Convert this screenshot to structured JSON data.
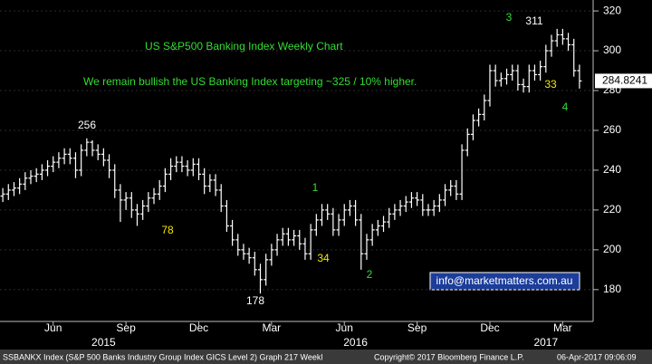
{
  "chart_data": {
    "type": "ohlc",
    "title": "US S&P500 Banking Index Weekly Chart",
    "subtitle": "We remain bullish the US Banking Index targeting ~325 / 10% higher.",
    "categories": [
      null,
      null,
      null,
      null,
      null,
      null,
      null,
      null,
      null,
      "Jun",
      null,
      null,
      null,
      null,
      null,
      null,
      null,
      null,
      null,
      null,
      null,
      null,
      "Sep",
      null,
      null,
      null,
      null,
      null,
      null,
      null,
      null,
      null,
      null,
      null,
      null,
      "Dec",
      null,
      null,
      null,
      null,
      null,
      null,
      null,
      null,
      null,
      null,
      null,
      null,
      "Mar",
      null,
      null,
      null,
      null,
      null,
      null,
      null,
      null,
      null,
      null,
      null,
      null,
      "Jun",
      null,
      null,
      null,
      null,
      null,
      null,
      null,
      null,
      null,
      null,
      null,
      null,
      "Sep",
      null,
      null,
      null,
      null,
      null,
      null,
      null,
      null,
      null,
      null,
      null,
      null,
      "Dec",
      null,
      null,
      null,
      null,
      null,
      null,
      null,
      null,
      null,
      null,
      null,
      null,
      "Mar",
      null,
      null,
      null
    ],
    "year_categories": [
      null,
      null,
      null,
      null,
      null,
      null,
      null,
      null,
      null,
      null,
      null,
      null,
      null,
      null,
      null,
      null,
      null,
      null,
      "2015",
      null,
      null,
      null,
      null,
      null,
      null,
      null,
      null,
      null,
      null,
      null,
      null,
      null,
      null,
      null,
      null,
      null,
      null,
      null,
      null,
      null,
      null,
      null,
      null,
      null,
      null,
      null,
      null,
      null,
      null,
      null,
      null,
      null,
      null,
      null,
      null,
      null,
      null,
      null,
      null,
      null,
      null,
      null,
      null,
      "2016",
      null,
      null,
      null,
      null,
      null,
      null,
      null,
      null,
      null,
      null,
      null,
      null,
      null,
      null,
      null,
      null,
      null,
      null,
      null,
      null,
      null,
      null,
      null,
      null,
      null,
      null,
      null,
      null,
      null,
      null,
      null,
      null,
      null,
      "2017",
      null,
      null,
      null,
      null,
      null,
      null
    ],
    "open": [
      227,
      228,
      230,
      231,
      233,
      236,
      237,
      238,
      240,
      242,
      244,
      246,
      248,
      246,
      240,
      250,
      254,
      250,
      248,
      245,
      240,
      230,
      225,
      226,
      220,
      218,
      222,
      226,
      228,
      232,
      238,
      242,
      244,
      242,
      240,
      243,
      238,
      232,
      235,
      230,
      222,
      212,
      205,
      200,
      198,
      196,
      190,
      185,
      195,
      200,
      205,
      208,
      205,
      207,
      203,
      198,
      210,
      215,
      220,
      218,
      210,
      215,
      220,
      222,
      215,
      198,
      205,
      210,
      212,
      214,
      218,
      220,
      222,
      224,
      226,
      225,
      220,
      220,
      222,
      225,
      230,
      232,
      228,
      250,
      258,
      265,
      268,
      275,
      290,
      285,
      286,
      288,
      290,
      283,
      282,
      290,
      288,
      292,
      300,
      305,
      308,
      306,
      303,
      290
    ],
    "high": [
      231,
      233,
      234,
      236,
      239,
      240,
      241,
      243,
      245,
      247,
      249,
      251,
      251,
      249,
      253,
      256,
      255,
      253,
      251,
      248,
      243,
      233,
      229,
      229,
      223,
      225,
      229,
      231,
      235,
      241,
      246,
      247,
      247,
      245,
      246,
      246,
      241,
      238,
      238,
      233,
      225,
      215,
      208,
      203,
      201,
      199,
      193,
      198,
      203,
      208,
      211,
      211,
      210,
      210,
      206,
      213,
      218,
      223,
      223,
      221,
      218,
      223,
      225,
      225,
      218,
      208,
      213,
      215,
      217,
      221,
      223,
      225,
      227,
      229,
      229,
      228,
      223,
      225,
      228,
      233,
      235,
      235,
      253,
      261,
      268,
      271,
      278,
      293,
      293,
      289,
      291,
      293,
      293,
      286,
      293,
      293,
      295,
      303,
      308,
      311,
      311,
      309,
      306,
      293
    ],
    "low": [
      224,
      225,
      227,
      228,
      230,
      233,
      234,
      235,
      237,
      239,
      241,
      243,
      243,
      236,
      237,
      247,
      247,
      245,
      242,
      236,
      226,
      214,
      220,
      216,
      212,
      215,
      219,
      223,
      225,
      229,
      235,
      239,
      239,
      237,
      237,
      235,
      228,
      229,
      227,
      219,
      209,
      202,
      197,
      195,
      193,
      187,
      178,
      182,
      192,
      197,
      202,
      202,
      202,
      200,
      195,
      195,
      207,
      212,
      215,
      207,
      207,
      212,
      217,
      212,
      190,
      195,
      202,
      207,
      209,
      211,
      215,
      217,
      219,
      221,
      222,
      217,
      217,
      217,
      219,
      222,
      227,
      225,
      225,
      247,
      255,
      262,
      265,
      272,
      282,
      282,
      283,
      285,
      280,
      279,
      279,
      285,
      285,
      289,
      297,
      302,
      303,
      300,
      287,
      281
    ],
    "close": [
      228,
      230,
      231,
      233,
      236,
      237,
      238,
      240,
      242,
      244,
      246,
      248,
      246,
      240,
      250,
      254,
      250,
      248,
      245,
      240,
      230,
      225,
      226,
      220,
      218,
      222,
      226,
      228,
      232,
      238,
      242,
      244,
      242,
      240,
      243,
      238,
      232,
      235,
      230,
      222,
      212,
      205,
      200,
      198,
      196,
      190,
      185,
      195,
      200,
      205,
      208,
      205,
      207,
      203,
      198,
      210,
      215,
      220,
      218,
      210,
      215,
      220,
      222,
      215,
      198,
      205,
      210,
      212,
      214,
      218,
      220,
      222,
      224,
      226,
      225,
      220,
      220,
      222,
      225,
      230,
      232,
      228,
      250,
      258,
      265,
      268,
      275,
      290,
      285,
      286,
      288,
      290,
      283,
      282,
      290,
      288,
      292,
      300,
      305,
      308,
      306,
      303,
      290,
      284.8241
    ],
    "color": "#ffffff",
    "ylim": [
      164,
      325.5
    ],
    "yticks": [
      180,
      200,
      220,
      240,
      260,
      280,
      300,
      320
    ],
    "grid": true,
    "annotations": [
      "256",
      "78",
      "178",
      "1",
      "34",
      "2",
      "3",
      "311",
      "33",
      "4",
      "info@marketmatters.com.au"
    ],
    "footer": [
      "SSBANKX Index (S&P 500 Banks Industry Group Index GICS Level 2) Graph 217  Weekl",
      "Copyright© 2017 Bloomberg Finance L.P.",
      "06-Apr-2017 09:06:09"
    ]
  }
}
